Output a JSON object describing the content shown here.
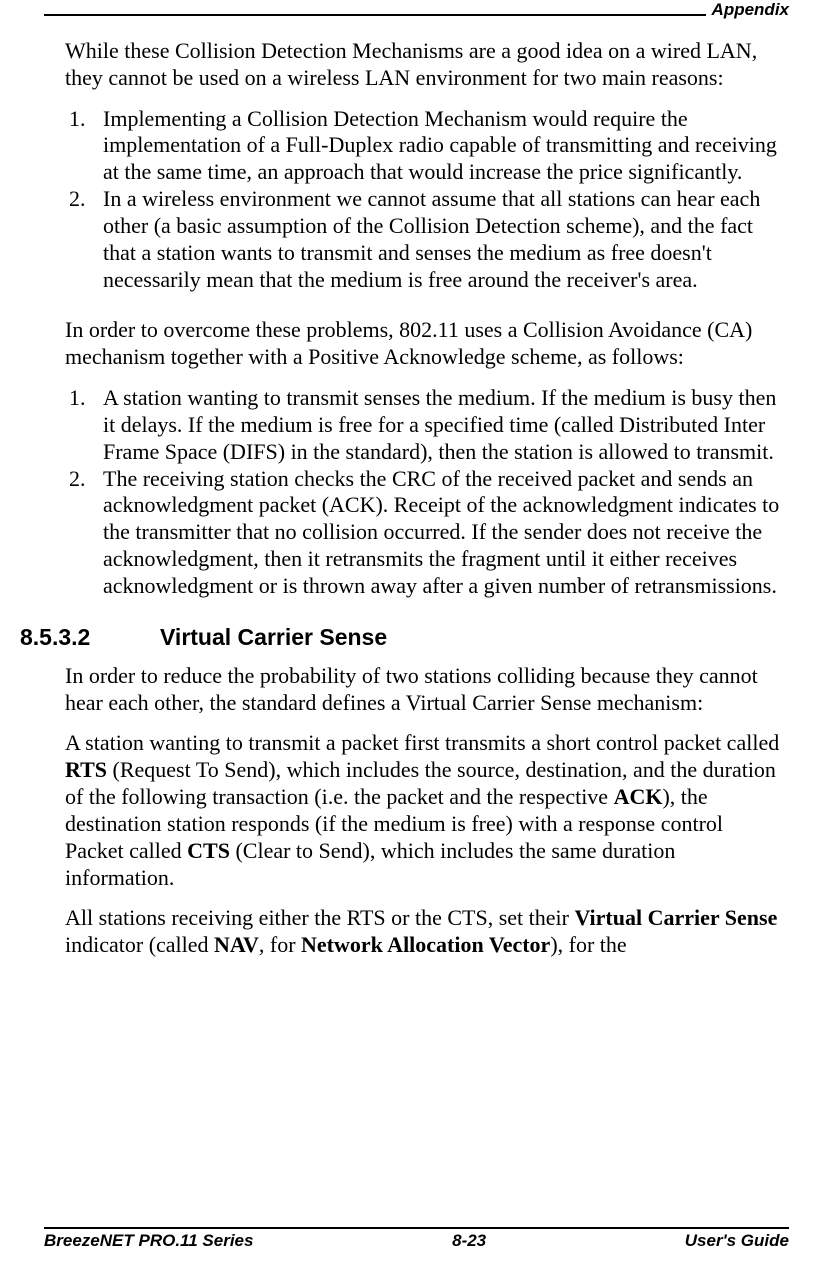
{
  "header": {
    "right": "Appendix"
  },
  "body": {
    "p1": "While these Collision Detection Mechanisms are a good idea on a wired LAN, they cannot be used on a wireless LAN environment for two main reasons:",
    "list1": [
      {
        "marker": "1.",
        "text": "Implementing a Collision Detection Mechanism would require the implementation of a Full-Duplex radio capable of transmitting and receiving at the same time, an approach that would increase the price significantly."
      },
      {
        "marker": "2.",
        "text": "In a wireless environment we cannot assume that all stations can hear each other (a basic assumption of the Collision Detection scheme), and the fact that a station wants to transmit and senses the medium as free doesn't necessarily mean that the medium is free around the receiver's area."
      }
    ],
    "p2": "In order to overcome these problems, 802.11 uses a Collision Avoidance (CA) mechanism together with a Positive Acknowledge scheme, as follows:",
    "list2": [
      {
        "marker": "1.",
        "text": "A station wanting to transmit senses the medium. If the medium is busy then it delays. If the medium is free for a specified time (called Distributed Inter Frame Space (DIFS) in the standard), then the station is allowed to transmit."
      },
      {
        "marker": "2.",
        "text": "The receiving station checks the CRC of the received packet and sends an acknowledgment packet (ACK). Receipt of the acknowledgment indicates to the transmitter that no collision occurred. If the sender does not receive the acknowledgment, then it retransmits the fragment until it either receives acknowledgment or is thrown away after a given number of retransmissions."
      }
    ],
    "heading": {
      "num": "8.5.3.2",
      "title": "Virtual Carrier Sense"
    },
    "p3": "In order to reduce the probability of two stations colliding because they cannot hear each other, the standard defines a Virtual Carrier Sense mechanism:",
    "p4": {
      "seg1": "A station wanting to transmit a packet first transmits a short control packet called ",
      "rts": "RTS",
      "seg2": " (Request To Send), which includes the source, destination, and the duration of the following transaction (i.e. the packet and the respective ",
      "ack": "ACK",
      "seg3": "), the destination station responds (if the medium is free) with a response control Packet called ",
      "cts": "CTS",
      "seg4": " (Clear to Send), which includes the same duration information."
    },
    "p5": {
      "seg1": "All stations receiving either the RTS or the CTS, set their ",
      "vcs": "Virtual Carrier Sense",
      "seg2": " indicator (called ",
      "nav": "NAV",
      "seg3": ", for ",
      "navfull": "Network Allocation Vector",
      "seg4": "), for the"
    }
  },
  "footer": {
    "left": "BreezeNET PRO.11 Series",
    "center": "8-23",
    "right": "User's Guide"
  }
}
